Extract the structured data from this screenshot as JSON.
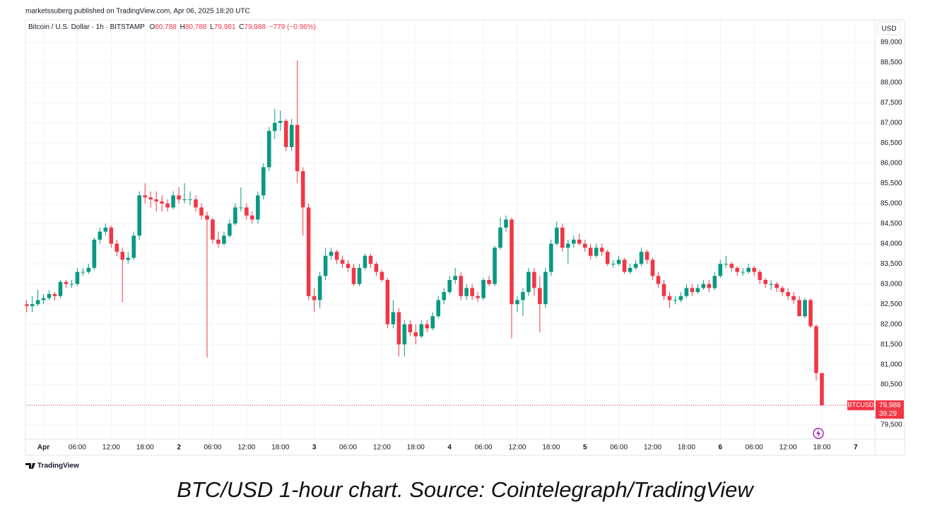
{
  "header": {
    "published": "marketssuberg published on TradingView.com, Apr 06, 2025 18:20 UTC",
    "symbol": "Bitcoin / U.S. Dollar · 1h · BITSTAMP",
    "o": "O",
    "o_value": "80,788",
    "h": "H",
    "h_value": "80,788",
    "l": "L",
    "l_value": "79,981",
    "c": "C",
    "c_value": "79,988",
    "change": "−779 (−0.96%)",
    "currency": "USD"
  },
  "footer": {
    "logo": "TradingView",
    "caption": "BTC/USD 1-hour chart. Source: Cointelegraph/TradingView"
  },
  "chart_data": {
    "type": "candlestick",
    "up_color": "#089981",
    "down_color": "#f23645",
    "ylim": [
      79150,
      89560
    ],
    "xlim": [
      -0.2,
      150.4
    ],
    "grid": true,
    "yticks": [
      {
        "value": 79500,
        "label": "79,500"
      },
      {
        "value": 80000,
        "label": "80,000"
      },
      {
        "value": 80500,
        "label": "80,500"
      },
      {
        "value": 81000,
        "label": "81,000"
      },
      {
        "value": 81500,
        "label": "81,500"
      },
      {
        "value": 82000,
        "label": "82,000"
      },
      {
        "value": 82500,
        "label": "82,500"
      },
      {
        "value": 83000,
        "label": "83,000"
      },
      {
        "value": 83500,
        "label": "83,500"
      },
      {
        "value": 84000,
        "label": "84,000"
      },
      {
        "value": 84500,
        "label": "84,500"
      },
      {
        "value": 85000,
        "label": "85,000"
      },
      {
        "value": 85500,
        "label": "85,500"
      },
      {
        "value": 86000,
        "label": "86,000"
      },
      {
        "value": 86500,
        "label": "86,500"
      },
      {
        "value": 87000,
        "label": "87,000"
      },
      {
        "value": 87500,
        "label": "87,500"
      },
      {
        "value": 88000,
        "label": "88,000"
      },
      {
        "value": 88500,
        "label": "88,500"
      },
      {
        "value": 89000,
        "label": "89,000"
      }
    ],
    "xticks": [
      {
        "value": 3,
        "label": "Apr"
      },
      {
        "value": 9,
        "label": "06:00"
      },
      {
        "value": 15,
        "label": "12:00"
      },
      {
        "value": 21,
        "label": "18:00"
      },
      {
        "value": 27,
        "label": "2"
      },
      {
        "value": 33,
        "label": "06:00"
      },
      {
        "value": 39,
        "label": "12:00"
      },
      {
        "value": 45,
        "label": "18:00"
      },
      {
        "value": 51,
        "label": "3"
      },
      {
        "value": 57,
        "label": "06:00"
      },
      {
        "value": 63,
        "label": "12:00"
      },
      {
        "value": 69,
        "label": "18:00"
      },
      {
        "value": 75,
        "label": "4"
      },
      {
        "value": 81,
        "label": "06:00"
      },
      {
        "value": 87,
        "label": "12:00"
      },
      {
        "value": 93,
        "label": "18:00"
      },
      {
        "value": 99,
        "label": "5"
      },
      {
        "value": 105,
        "label": "06:00"
      },
      {
        "value": 111,
        "label": "12:00"
      },
      {
        "value": 117,
        "label": "18:00"
      },
      {
        "value": 123,
        "label": "6"
      },
      {
        "value": 129,
        "label": "06:00"
      },
      {
        "value": 135,
        "label": "12:00"
      },
      {
        "value": 141,
        "label": "18:00"
      },
      {
        "value": 147,
        "label": "7"
      }
    ],
    "last_symbol": "BTCUSD",
    "last_label": "79,988",
    "countdown": "39:29",
    "candles": [
      [
        82500,
        82600,
        82300,
        82450
      ],
      [
        82450,
        82700,
        82300,
        82500
      ],
      [
        82500,
        82850,
        82450,
        82600
      ],
      [
        82600,
        82750,
        82500,
        82650
      ],
      [
        82650,
        82850,
        82600,
        82750
      ],
      [
        82750,
        82800,
        82600,
        82700
      ],
      [
        82700,
        83100,
        82650,
        83050
      ],
      [
        83050,
        83100,
        82900,
        83000
      ],
      [
        83000,
        83100,
        82900,
        83000
      ],
      [
        83000,
        83400,
        82950,
        83300
      ],
      [
        83300,
        83400,
        83200,
        83300
      ],
      [
        83300,
        83500,
        83250,
        83400
      ],
      [
        83400,
        84150,
        83350,
        84100
      ],
      [
        84100,
        84400,
        84000,
        84300
      ],
      [
        84300,
        84500,
        84200,
        84400
      ],
      [
        84400,
        84450,
        83900,
        84000
      ],
      [
        84000,
        84100,
        83700,
        83800
      ],
      [
        83800,
        83900,
        82550,
        83600
      ],
      [
        83600,
        83800,
        83500,
        83650
      ],
      [
        83650,
        84300,
        83600,
        84200
      ],
      [
        84200,
        85300,
        84100,
        85200
      ],
      [
        85200,
        85500,
        85000,
        85150
      ],
      [
        85150,
        85300,
        84900,
        85100
      ],
      [
        85100,
        85300,
        84800,
        85050
      ],
      [
        85050,
        85200,
        84800,
        85000
      ],
      [
        85000,
        85100,
        84800,
        84900
      ],
      [
        84900,
        85300,
        84850,
        85200
      ],
      [
        85200,
        85400,
        85000,
        85100
      ],
      [
        85100,
        85500,
        85000,
        85100
      ],
      [
        85100,
        85300,
        84950,
        85100
      ],
      [
        85100,
        85200,
        84800,
        84900
      ],
      [
        84900,
        85000,
        84600,
        84700
      ],
      [
        84700,
        84800,
        81170,
        84600
      ],
      [
        84600,
        84650,
        84000,
        84100
      ],
      [
        84100,
        84300,
        83900,
        84000
      ],
      [
        84000,
        84300,
        83950,
        84200
      ],
      [
        84200,
        84600,
        84150,
        84500
      ],
      [
        84500,
        85000,
        84450,
        84900
      ],
      [
        84900,
        85400,
        84800,
        84900
      ],
      [
        84900,
        85000,
        84600,
        84700
      ],
      [
        84700,
        84800,
        84500,
        84600
      ],
      [
        84600,
        85300,
        84500,
        85200
      ],
      [
        85200,
        86000,
        85100,
        85900
      ],
      [
        85900,
        86900,
        85800,
        86800
      ],
      [
        86800,
        87350,
        86600,
        87000
      ],
      [
        87000,
        87300,
        86800,
        87050
      ],
      [
        87050,
        87100,
        86300,
        86400
      ],
      [
        86400,
        87100,
        86300,
        86950
      ],
      [
        86950,
        88550,
        85500,
        85800
      ],
      [
        85800,
        85900,
        84200,
        84900
      ],
      [
        84900,
        85000,
        82600,
        82700
      ],
      [
        82700,
        82900,
        82300,
        82600
      ],
      [
        82600,
        83300,
        82400,
        83200
      ],
      [
        83200,
        83900,
        83100,
        83700
      ],
      [
        83700,
        83900,
        83600,
        83800
      ],
      [
        83800,
        83850,
        83500,
        83600
      ],
      [
        83600,
        83700,
        83400,
        83500
      ],
      [
        83500,
        83600,
        83300,
        83400
      ],
      [
        83400,
        83500,
        82950,
        83000
      ],
      [
        83000,
        83500,
        82950,
        83400
      ],
      [
        83400,
        83750,
        83350,
        83700
      ],
      [
        83700,
        83750,
        83400,
        83500
      ],
      [
        83500,
        83550,
        83200,
        83300
      ],
      [
        83300,
        83350,
        83050,
        83100
      ],
      [
        83100,
        83150,
        81900,
        82000
      ],
      [
        82000,
        82600,
        81900,
        82300
      ],
      [
        82300,
        82400,
        81200,
        81500
      ],
      [
        81500,
        82100,
        81200,
        82000
      ],
      [
        82000,
        82100,
        81700,
        81800
      ],
      [
        81800,
        82000,
        81500,
        81700
      ],
      [
        81700,
        82100,
        81650,
        82000
      ],
      [
        82000,
        82100,
        81800,
        81900
      ],
      [
        81900,
        82300,
        81850,
        82200
      ],
      [
        82200,
        82700,
        82150,
        82600
      ],
      [
        82600,
        82900,
        82500,
        82800
      ],
      [
        82800,
        83200,
        82750,
        83100
      ],
      [
        83100,
        83400,
        83000,
        83200
      ],
      [
        83200,
        83300,
        82600,
        82700
      ],
      [
        82700,
        83000,
        82600,
        82900
      ],
      [
        82900,
        83000,
        82600,
        82700
      ],
      [
        82700,
        82800,
        82550,
        82650
      ],
      [
        82650,
        83150,
        82600,
        83100
      ],
      [
        83100,
        83200,
        82950,
        83000
      ],
      [
        83000,
        83950,
        82950,
        83900
      ],
      [
        83900,
        84650,
        83850,
        84400
      ],
      [
        84400,
        84700,
        84300,
        84600
      ],
      [
        84600,
        84650,
        81650,
        82500
      ],
      [
        82500,
        82700,
        82300,
        82600
      ],
      [
        82600,
        82900,
        82200,
        82800
      ],
      [
        82800,
        83400,
        82700,
        83300
      ],
      [
        83300,
        83400,
        82700,
        82900
      ],
      [
        82900,
        83200,
        81800,
        82500
      ],
      [
        82500,
        83400,
        82400,
        83300
      ],
      [
        83300,
        84100,
        83200,
        84000
      ],
      [
        84000,
        84550,
        83950,
        84400
      ],
      [
        84400,
        84500,
        83800,
        83900
      ],
      [
        83900,
        84100,
        83500,
        84000
      ],
      [
        84000,
        84200,
        83900,
        84100
      ],
      [
        84100,
        84250,
        83950,
        84000
      ],
      [
        84000,
        84100,
        83800,
        83900
      ],
      [
        83900,
        84000,
        83600,
        83700
      ],
      [
        83700,
        84000,
        83650,
        83900
      ],
      [
        83900,
        84000,
        83700,
        83800
      ],
      [
        83800,
        83850,
        83450,
        83500
      ],
      [
        83500,
        83600,
        83400,
        83500
      ],
      [
        83500,
        83700,
        83450,
        83600
      ],
      [
        83600,
        83650,
        83250,
        83300
      ],
      [
        83300,
        83500,
        83250,
        83400
      ],
      [
        83400,
        83600,
        83350,
        83500
      ],
      [
        83500,
        83900,
        83450,
        83800
      ],
      [
        83800,
        83850,
        83500,
        83600
      ],
      [
        83600,
        83650,
        83100,
        83200
      ],
      [
        83200,
        83300,
        82900,
        83000
      ],
      [
        83000,
        83100,
        82600,
        82700
      ],
      [
        82700,
        82800,
        82400,
        82600
      ],
      [
        82600,
        82700,
        82500,
        82600
      ],
      [
        82600,
        82800,
        82550,
        82700
      ],
      [
        82700,
        83000,
        82650,
        82900
      ],
      [
        82900,
        83000,
        82700,
        82800
      ],
      [
        82800,
        83000,
        82750,
        82900
      ],
      [
        82900,
        83100,
        82850,
        83000
      ],
      [
        83000,
        83100,
        82800,
        82900
      ],
      [
        82900,
        83300,
        82850,
        83200
      ],
      [
        83200,
        83600,
        83150,
        83500
      ],
      [
        83500,
        83700,
        83400,
        83500
      ],
      [
        83500,
        83550,
        83300,
        83400
      ],
      [
        83400,
        83450,
        83200,
        83300
      ],
      [
        83300,
        83400,
        83200,
        83300
      ],
      [
        83300,
        83500,
        83250,
        83400
      ],
      [
        83400,
        83450,
        83200,
        83300
      ],
      [
        83300,
        83350,
        83000,
        83100
      ],
      [
        83100,
        83150,
        82900,
        83000
      ],
      [
        83000,
        83100,
        82850,
        83000
      ],
      [
        83000,
        83050,
        82800,
        82900
      ],
      [
        82900,
        82950,
        82700,
        82800
      ],
      [
        82800,
        82900,
        82600,
        82700
      ],
      [
        82700,
        82800,
        82500,
        82600
      ],
      [
        82600,
        82700,
        82200,
        82200
      ],
      [
        82200,
        82650,
        82150,
        82600
      ],
      [
        82600,
        82650,
        81900,
        81950
      ],
      [
        81950,
        82000,
        80600,
        80788
      ],
      [
        80788,
        80788,
        79981,
        79988
      ]
    ]
  }
}
